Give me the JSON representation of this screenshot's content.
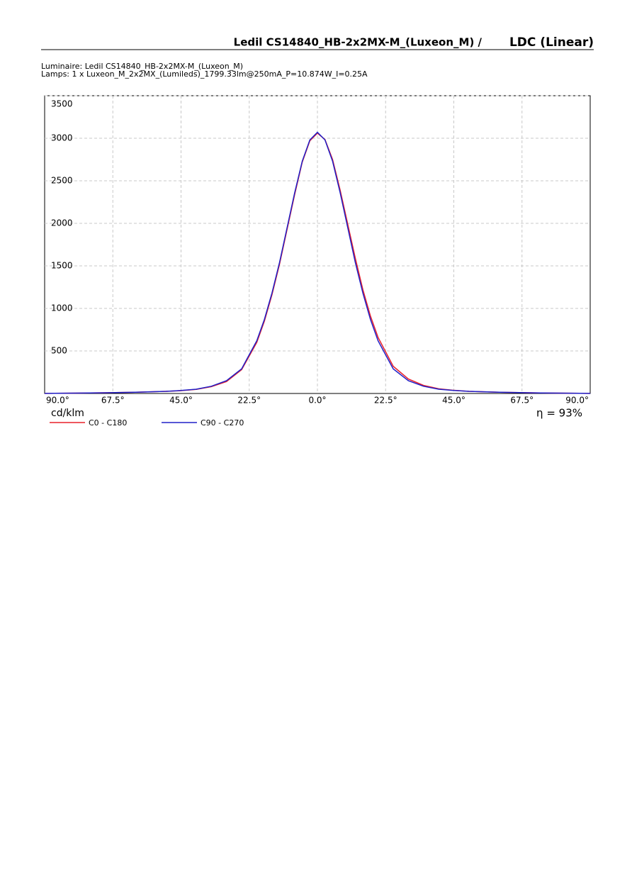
{
  "chart_data": {
    "type": "line",
    "title": "Ledil CS14840_HB-2x2MX-M_(Luxeon_M) / ",
    "title_suffix": "LDC (Linear)",
    "subtitle": [
      "Luminaire: Ledil CS14840_HB-2x2MX-M_(Luxeon_M)",
      "Lamps: 1 x Luxeon_M_2x2MX_(Lumileds)_1799.33lm@250mA_P=10.874W_I=0.25A"
    ],
    "y_label": "cd/klm",
    "annotation": "η = 93%",
    "x": [
      -90,
      -80,
      -70,
      -60,
      -50,
      -45,
      -40,
      -35,
      -30,
      -25,
      -20,
      -17.5,
      -15,
      -12.5,
      -10,
      -7.5,
      -5,
      -2.5,
      0,
      2.5,
      5,
      7.5,
      10,
      12.5,
      15,
      17.5,
      20,
      25,
      30,
      35,
      40,
      45,
      50,
      60,
      70,
      80,
      90
    ],
    "series": [
      {
        "name": "C0 - C180",
        "color": "#e8202a",
        "values": [
          1,
          4,
          8,
          15,
          25,
          33,
          48,
          80,
          140,
          280,
          600,
          850,
          1160,
          1520,
          1930,
          2340,
          2720,
          2970,
          3060,
          2985,
          2750,
          2390,
          1990,
          1590,
          1220,
          910,
          660,
          320,
          170,
          95,
          55,
          37,
          25,
          15,
          8,
          4,
          1
        ]
      },
      {
        "name": "C90 - C270",
        "color": "#2020c8",
        "values": [
          1,
          4,
          8,
          15,
          25,
          35,
          50,
          85,
          150,
          290,
          620,
          870,
          1180,
          1540,
          1950,
          2360,
          2730,
          2980,
          3070,
          2980,
          2730,
          2360,
          1950,
          1540,
          1180,
          870,
          620,
          290,
          150,
          85,
          50,
          35,
          25,
          15,
          8,
          4,
          1
        ]
      }
    ],
    "xlim": [
      -90,
      90
    ],
    "xticks": [
      {
        "value": -90,
        "label": "90.0°"
      },
      {
        "value": -67.5,
        "label": "67.5°"
      },
      {
        "value": -45,
        "label": "45.0°"
      },
      {
        "value": -22.5,
        "label": "22.5°"
      },
      {
        "value": 0,
        "label": "0.0°"
      },
      {
        "value": 22.5,
        "label": "22.5°"
      },
      {
        "value": 45,
        "label": "45.0°"
      },
      {
        "value": 67.5,
        "label": "67.5°"
      },
      {
        "value": 90,
        "label": "90.0°"
      }
    ],
    "ylim": [
      0,
      3500
    ],
    "yticks": [
      500,
      1000,
      1500,
      2000,
      2500,
      3000,
      3500
    ],
    "grid": true
  }
}
